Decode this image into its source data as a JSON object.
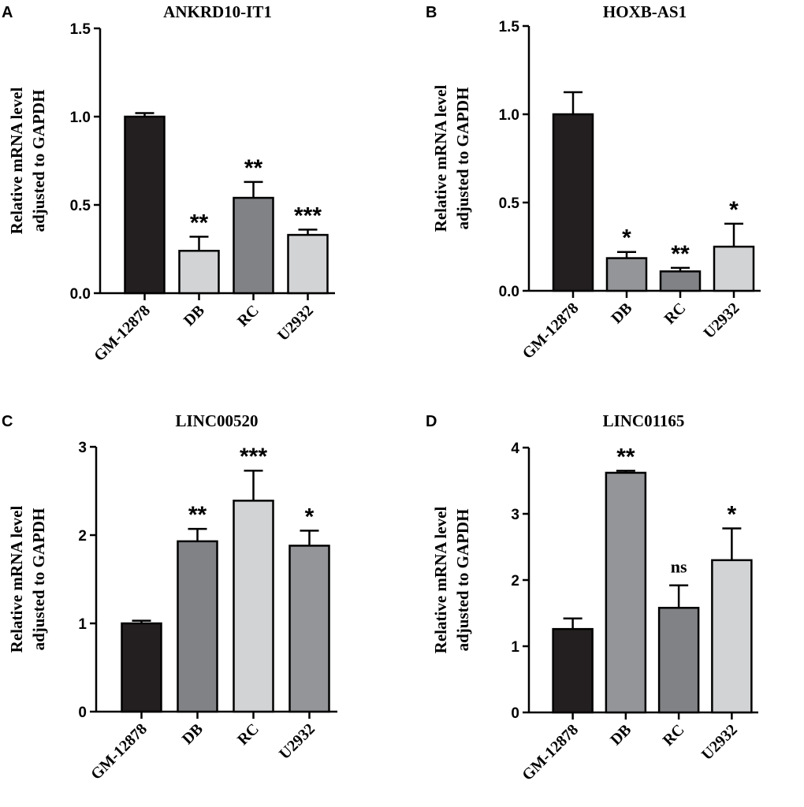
{
  "figure": {
    "panel_letters": [
      "A",
      "B",
      "C",
      "D"
    ]
  },
  "chart_data": [
    {
      "type": "bar",
      "panel": "A",
      "title": "ANKRD10-IT1",
      "ylabel_line1": "Relative mRNA level",
      "ylabel_line2": "adjusted to GAPDH",
      "xlabel": "",
      "categories": [
        "GM-12878",
        "DB",
        "RC",
        "U2932"
      ],
      "values": [
        1.0,
        0.24,
        0.54,
        0.33
      ],
      "errors": [
        0.02,
        0.08,
        0.09,
        0.03
      ],
      "significance": [
        "",
        "**",
        "**",
        "***"
      ],
      "bar_colors": [
        "#231f20",
        "#d1d3d4",
        "#808285",
        "#d1d3d4"
      ],
      "ylim": [
        0,
        1.5
      ],
      "yticks": [
        0.0,
        0.5,
        1.0,
        1.5
      ],
      "ytick_labels": [
        "0.0",
        "0.5",
        "1.0",
        "1.5"
      ]
    },
    {
      "type": "bar",
      "panel": "B",
      "title": "HOXB-AS1",
      "ylabel_line1": "Relative mRNA level",
      "ylabel_line2": "adjusted to GAPDH",
      "xlabel": "",
      "categories": [
        "GM-12878",
        "DB",
        "RC",
        "U2932"
      ],
      "values": [
        1.0,
        0.185,
        0.11,
        0.25
      ],
      "errors": [
        0.125,
        0.035,
        0.02,
        0.13
      ],
      "significance": [
        "",
        "*",
        "**",
        "*"
      ],
      "bar_colors": [
        "#231f20",
        "#939598",
        "#808285",
        "#d1d3d4"
      ],
      "ylim": [
        0,
        1.5
      ],
      "yticks": [
        0.0,
        0.5,
        1.0,
        1.5
      ],
      "ytick_labels": [
        "0.0",
        "0.5",
        "1.0",
        "1.5"
      ]
    },
    {
      "type": "bar",
      "panel": "C",
      "title": "LINC00520",
      "ylabel_line1": "Relative mRNA level",
      "ylabel_line2": "adjusted to GAPDH",
      "xlabel": "",
      "categories": [
        "GM-12878",
        "DB",
        "RC",
        "U2932"
      ],
      "values": [
        1.0,
        1.93,
        2.39,
        1.88
      ],
      "errors": [
        0.03,
        0.14,
        0.34,
        0.17
      ],
      "significance": [
        "",
        "**",
        "***",
        "*"
      ],
      "bar_colors": [
        "#231f20",
        "#808285",
        "#d1d3d4",
        "#939598"
      ],
      "ylim": [
        0,
        3
      ],
      "yticks": [
        0,
        1,
        2,
        3
      ],
      "ytick_labels": [
        "0",
        "1",
        "2",
        "3"
      ]
    },
    {
      "type": "bar",
      "panel": "D",
      "title": "LINC01165",
      "ylabel_line1": "Relative mRNA level",
      "ylabel_line2": "adjusted to GAPDH",
      "xlabel": "",
      "categories": [
        "GM-12878",
        "DB",
        "RC",
        "U2932"
      ],
      "values": [
        1.26,
        3.62,
        1.58,
        2.3
      ],
      "errors": [
        0.16,
        0.03,
        0.34,
        0.48
      ],
      "significance": [
        "",
        "**",
        "ns",
        "*"
      ],
      "bar_colors": [
        "#231f20",
        "#939598",
        "#808285",
        "#d1d3d4"
      ],
      "ylim": [
        0,
        4
      ],
      "yticks": [
        0,
        1,
        2,
        3,
        4
      ],
      "ytick_labels": [
        "0",
        "1",
        "2",
        "3",
        "4"
      ]
    }
  ]
}
